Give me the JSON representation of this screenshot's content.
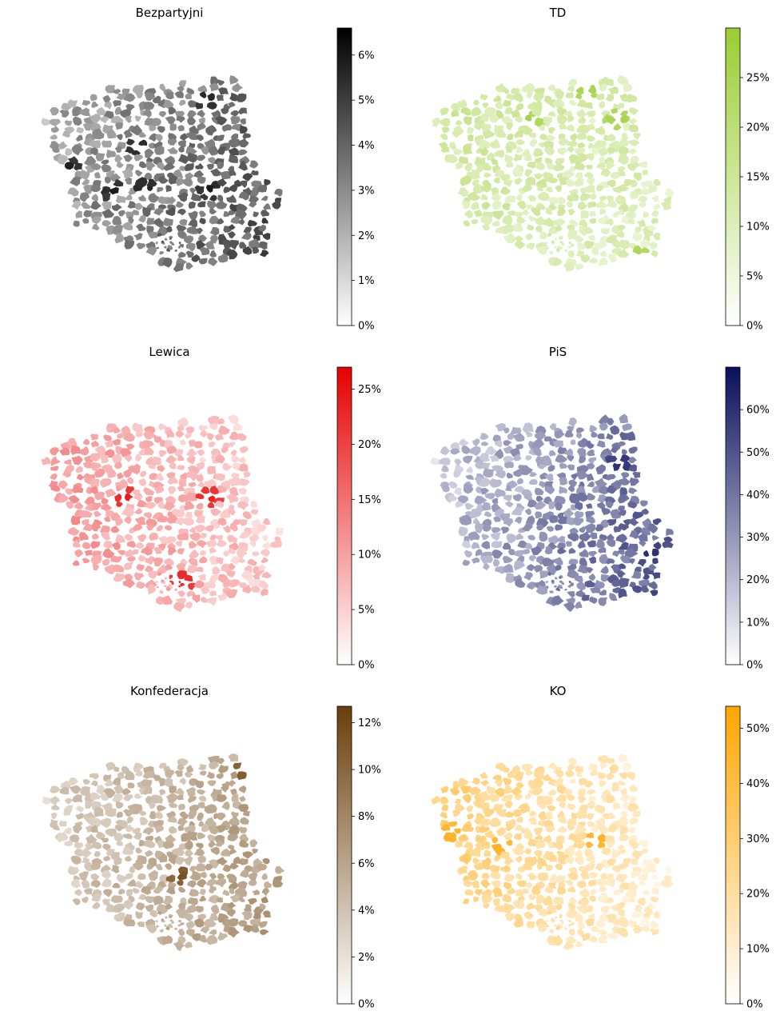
{
  "panels": [
    {
      "id": "bezpartyjni",
      "title": "Bezpartyjni",
      "colors": [
        "#ffffff",
        "#000000"
      ],
      "vmax": 6.6,
      "ticks": [
        {
          "value": 0,
          "label": "0%"
        },
        {
          "value": 1,
          "label": "1%"
        },
        {
          "value": 2,
          "label": "2%"
        },
        {
          "value": 3,
          "label": "3%"
        },
        {
          "value": 4,
          "label": "4%"
        },
        {
          "value": 5,
          "label": "5%"
        },
        {
          "value": 6,
          "label": "6%"
        }
      ],
      "bias": [
        0.5,
        0.3,
        0.1
      ],
      "spread": 0.14,
      "hotspots": [
        [
          0.43,
          0.57
        ],
        [
          0.3,
          0.58
        ],
        [
          0.12,
          0.47
        ],
        [
          0.4,
          0.36
        ],
        [
          0.7,
          0.58
        ],
        [
          0.68,
          0.12
        ]
      ]
    },
    {
      "id": "td",
      "title": "TD",
      "colors": [
        "#ffffff",
        "#9acd32"
      ],
      "vmax": 30,
      "ticks": [
        {
          "value": 0,
          "label": "0%"
        },
        {
          "value": 5,
          "label": "5%"
        },
        {
          "value": 10,
          "label": "10%"
        },
        {
          "value": 15,
          "label": "15%"
        },
        {
          "value": 20,
          "label": "20%"
        },
        {
          "value": 25,
          "label": "25%"
        }
      ],
      "bias": [
        0.38,
        -0.1,
        -0.05
      ],
      "spread": 0.12,
      "hotspots": [
        [
          0.86,
          0.93
        ],
        [
          0.77,
          0.22
        ],
        [
          0.64,
          0.07
        ],
        [
          0.41,
          0.23
        ]
      ]
    },
    {
      "id": "lewica",
      "title": "Lewica",
      "colors": [
        "#ffffff",
        "#e60000"
      ],
      "vmax": 27,
      "ticks": [
        {
          "value": 0,
          "label": "0%"
        },
        {
          "value": 5,
          "label": "5%"
        },
        {
          "value": 10,
          "label": "10%"
        },
        {
          "value": 15,
          "label": "15%"
        },
        {
          "value": 20,
          "label": "20%"
        },
        {
          "value": 25,
          "label": "25%"
        }
      ],
      "bias": [
        0.3,
        -0.22,
        0.05
      ],
      "spread": 0.1,
      "hotspots": [
        [
          0.58,
          0.84
        ],
        [
          0.69,
          0.42
        ],
        [
          0.35,
          0.42
        ]
      ]
    },
    {
      "id": "pis",
      "title": "PiS",
      "colors": [
        "#ffffff",
        "#0a0f5c"
      ],
      "vmax": 70,
      "ticks": [
        {
          "value": 0,
          "label": "0%"
        },
        {
          "value": 10,
          "label": "10%"
        },
        {
          "value": 20,
          "label": "20%"
        },
        {
          "value": 30,
          "label": "30%"
        },
        {
          "value": 40,
          "label": "40%"
        },
        {
          "value": 50,
          "label": "50%"
        },
        {
          "value": 60,
          "label": "60%"
        }
      ],
      "bias": [
        0.45,
        0.42,
        0.12
      ],
      "spread": 0.13,
      "hotspots": [
        [
          0.9,
          0.7
        ],
        [
          0.78,
          0.25
        ]
      ]
    },
    {
      "id": "konfederacja",
      "title": "Konfederacja",
      "colors": [
        "#ffffff",
        "#6b3e0a"
      ],
      "vmax": 12.7,
      "ticks": [
        {
          "value": 0,
          "label": "0%"
        },
        {
          "value": 2,
          "label": "2%"
        },
        {
          "value": 4,
          "label": "4%"
        },
        {
          "value": 6,
          "label": "6%"
        },
        {
          "value": 8,
          "label": "8%"
        },
        {
          "value": 10,
          "label": "10%"
        },
        {
          "value": 12,
          "label": "12%"
        }
      ],
      "bias": [
        0.38,
        0.25,
        0.05
      ],
      "spread": 0.1,
      "hotspots": [
        [
          0.84,
          0.05
        ],
        [
          0.85,
          0.12
        ],
        [
          0.58,
          0.62
        ]
      ]
    },
    {
      "id": "ko",
      "title": "KO",
      "colors": [
        "#ffffff",
        "#ffa500"
      ],
      "vmax": 54,
      "ticks": [
        {
          "value": 0,
          "label": "0%"
        },
        {
          "value": 10,
          "label": "10%"
        },
        {
          "value": 20,
          "label": "20%"
        },
        {
          "value": 30,
          "label": "30%"
        },
        {
          "value": 40,
          "label": "40%"
        },
        {
          "value": 50,
          "label": "50%"
        }
      ],
      "bias": [
        0.35,
        -0.35,
        0.0
      ],
      "spread": 0.11,
      "hotspots": [
        [
          0.68,
          0.43
        ],
        [
          0.29,
          0.47
        ],
        [
          0.08,
          0.4
        ]
      ]
    }
  ]
}
